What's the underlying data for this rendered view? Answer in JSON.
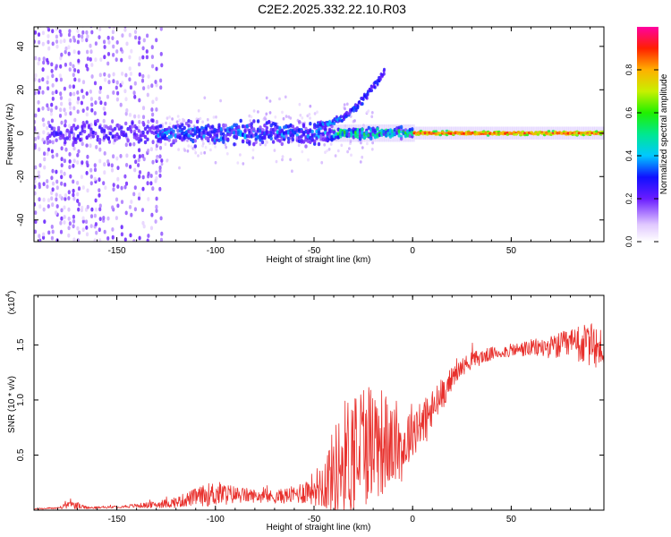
{
  "figure": {
    "title": "C2E2.2025.332.22.10.R03"
  },
  "chart_data": [
    {
      "type": "heatmap",
      "name": "spectrogram",
      "xlabel": "Height of straight line (km)",
      "ylabel": "Frequency (Hz)",
      "xlim": [
        -192,
        97
      ],
      "ylim": [
        -50,
        49
      ],
      "xticks": [
        -150,
        -100,
        -50,
        0,
        50
      ],
      "yticks": [
        -40,
        -20,
        0,
        20,
        40
      ],
      "colorbar": {
        "label": "Normalized spectral amplitude",
        "range": [
          0,
          1
        ],
        "ticks": [
          "0.0",
          "0.2",
          "0.4",
          "0.6",
          "0.8"
        ]
      },
      "features": [
        {
          "name": "central line",
          "x_range": [
            -185,
            97
          ],
          "frequency_hz": 0,
          "note": "broad noisy band (±8 Hz) below -40 km, narrowing to a sharp line above 0 km"
        },
        {
          "name": "branch",
          "x_range": [
            -45,
            -15
          ],
          "frequency_hz_range": [
            5,
            33
          ],
          "note": "upward curving branch above central line"
        },
        {
          "name": "broadband noise",
          "x_range": [
            -192,
            -130
          ],
          "frequency_hz_range": [
            -50,
            49
          ]
        }
      ],
      "peak_amplitude": {
        "x_range": [
          -5,
          95
        ],
        "value": 0.95
      }
    },
    {
      "type": "line",
      "name": "snr",
      "xlabel": "Height of straight line (km)",
      "ylabel": "SNR (10 * v/v)",
      "scale_label": "(x10",
      "scale_exp": "4",
      "xlim": [
        -192,
        97
      ],
      "ylim": [
        0,
        1.95
      ],
      "xticks": [
        -150,
        -100,
        -50,
        0,
        50
      ],
      "yticks": [
        "0.5",
        "1.0",
        "1.5"
      ],
      "series": [
        {
          "name": "SNR",
          "color": "#e8302c",
          "x": [
            -192,
            -180,
            -172,
            -165,
            -150,
            -140,
            -130,
            -120,
            -110,
            -100,
            -90,
            -80,
            -70,
            -60,
            -50,
            -45,
            -40,
            -35,
            -30,
            -25,
            -20,
            -15,
            -10,
            -5,
            0,
            5,
            10,
            15,
            20,
            25,
            30,
            40,
            50,
            60,
            70,
            80,
            90,
            97
          ],
          "values": [
            0.01,
            0.02,
            0.05,
            0.02,
            0.03,
            0.04,
            0.05,
            0.07,
            0.12,
            0.15,
            0.14,
            0.13,
            0.12,
            0.14,
            0.2,
            0.25,
            0.35,
            0.45,
            0.55,
            0.62,
            0.65,
            0.62,
            0.58,
            0.55,
            0.75,
            0.78,
            0.9,
            1.05,
            1.2,
            1.3,
            1.36,
            1.42,
            1.45,
            1.47,
            1.48,
            1.5,
            1.5,
            1.45
          ],
          "spread": [
            0.005,
            0.01,
            0.04,
            0.01,
            0.01,
            0.02,
            0.03,
            0.05,
            0.08,
            0.12,
            0.08,
            0.06,
            0.06,
            0.08,
            0.15,
            0.25,
            0.4,
            0.55,
            0.6,
            0.6,
            0.55,
            0.5,
            0.35,
            0.3,
            0.25,
            0.25,
            0.2,
            0.15,
            0.1,
            0.08,
            0.08,
            0.06,
            0.06,
            0.08,
            0.1,
            0.15,
            0.2,
            0.2
          ]
        }
      ]
    }
  ]
}
